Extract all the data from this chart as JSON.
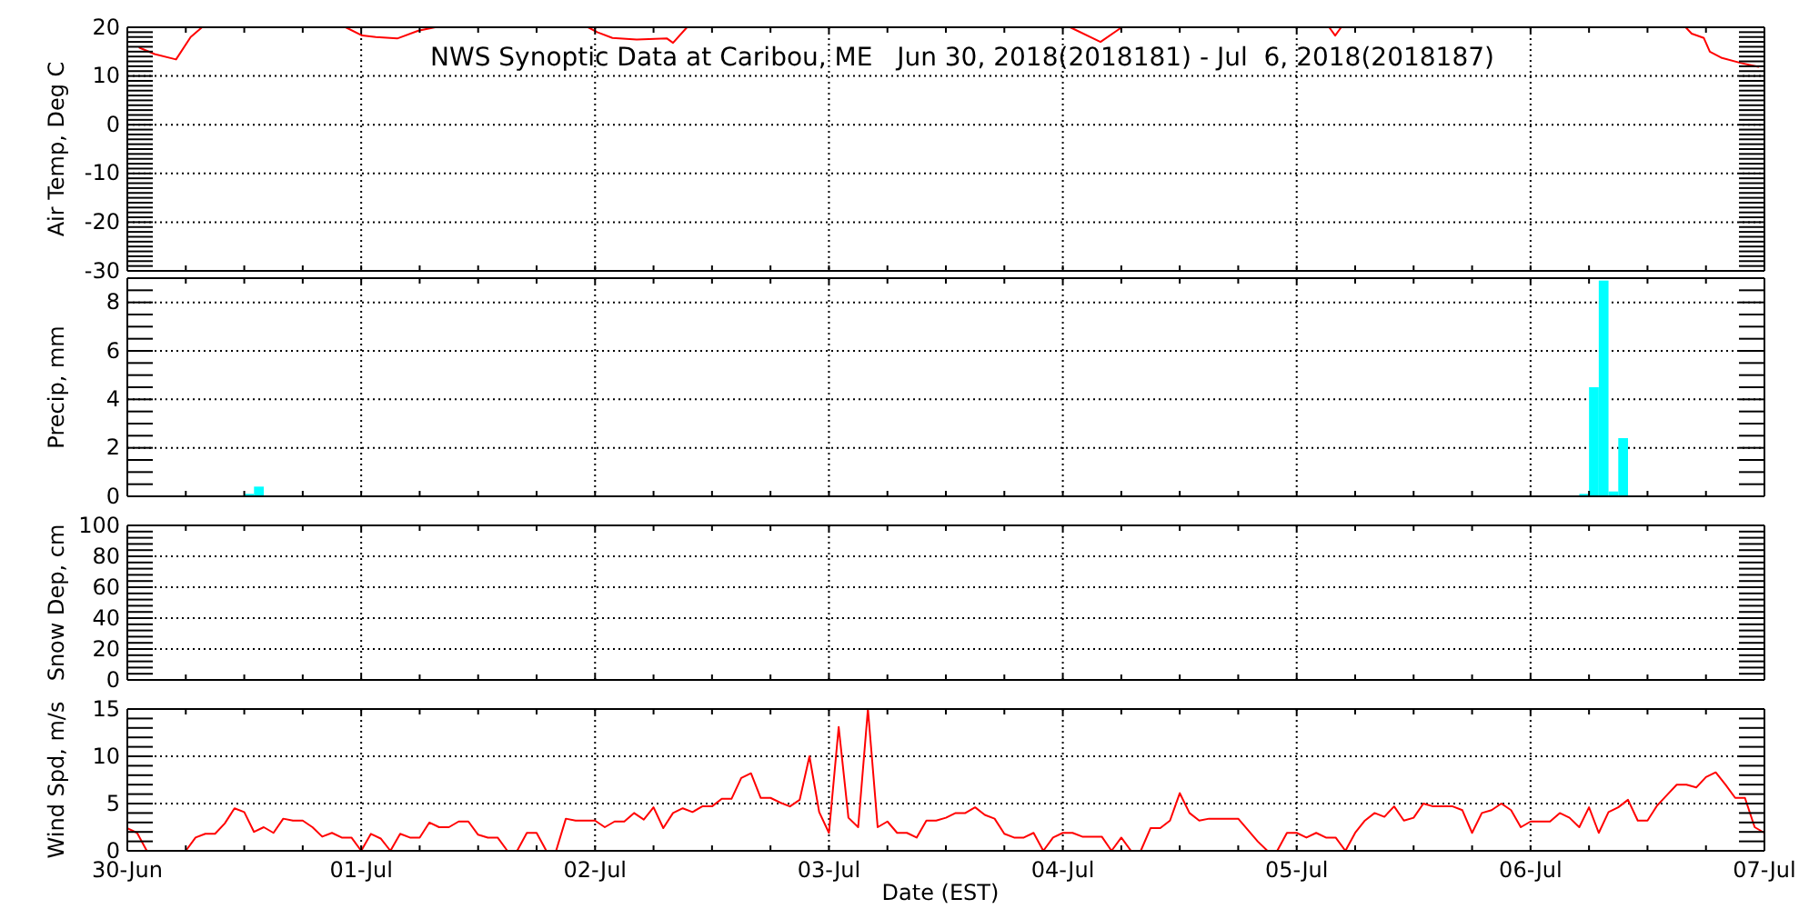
{
  "chart_data": [
    {
      "type": "line",
      "title": "NWS Synoptic Data at Caribou, ME   Jun 30, 2018(2018181) - Jul  6, 2018(2018187)",
      "ylabel": "Air Temp, Deg C",
      "color": "#ff0000",
      "grid": true,
      "tick_labels": "y",
      "x": [
        "2018-06-30T01:15",
        "2018-06-30T02:48",
        "2018-06-30T05:00",
        "2018-06-30T06:30",
        "2018-06-30T07:40",
        "2018-06-30T15:00",
        "2018-06-30T22:24",
        "2018-07-01T00:06",
        "2018-07-01T01:30",
        "2018-07-01T03:42",
        "2018-07-01T05:52",
        "2018-07-01T07:36",
        "2018-07-01T15:00",
        "2018-07-01T23:17",
        "2018-07-02T00:13",
        "2018-07-02T01:47",
        "2018-07-02T04:16",
        "2018-07-02T07:23",
        "2018-07-02T08:00",
        "2018-07-02T09:26",
        "2018-07-03T12:00",
        "2018-07-04T00:45",
        "2018-07-04T03:52",
        "2018-07-04T06:03",
        "2018-07-04T15:00",
        "2018-07-05T03:20",
        "2018-07-05T03:57",
        "2018-07-05T04:34",
        "2018-07-05T15:00",
        "2018-07-06T15:55",
        "2018-07-06T16:32",
        "2018-07-06T17:47",
        "2018-07-06T18:24",
        "2018-07-06T19:39",
        "2018-07-06T21:31",
        "2018-07-06T23:23"
      ],
      "values": [
        15.8,
        14.5,
        13.4,
        18.0,
        20,
        null,
        20,
        18.3,
        18.0,
        17.7,
        19.3,
        20,
        null,
        20,
        19.0,
        17.8,
        17.5,
        17.7,
        16.8,
        20,
        null,
        20,
        17.0,
        20,
        null,
        20,
        18.3,
        20,
        null,
        20,
        18.7,
        17.8,
        15.0,
        13.7,
        12.7,
        11.9
      ],
      "xlim": [
        "2018-06-30",
        "2018-07-07"
      ],
      "xticks": [
        {
          "value": "2018-06-30",
          "label": null
        },
        {
          "value": "2018-06-30T06:00",
          "label": null
        },
        {
          "value": "2018-06-30T12:00",
          "label": null
        },
        {
          "value": "2018-06-30T18:00",
          "label": null
        },
        {
          "value": "2018-07-01",
          "label": null
        },
        {
          "value": "2018-07-01T06:00",
          "label": null
        },
        {
          "value": "2018-07-01T12:00",
          "label": null
        },
        {
          "value": "2018-07-01T18:00",
          "label": null
        },
        {
          "value": "2018-07-02",
          "label": null
        },
        {
          "value": "2018-07-02T06:00",
          "label": null
        },
        {
          "value": "2018-07-02T12:00",
          "label": null
        },
        {
          "value": "2018-07-02T18:00",
          "label": null
        },
        {
          "value": "2018-07-03",
          "label": null
        },
        {
          "value": "2018-07-03T06:00",
          "label": null
        },
        {
          "value": "2018-07-03T12:00",
          "label": null
        },
        {
          "value": "2018-07-03T18:00",
          "label": null
        },
        {
          "value": "2018-07-04",
          "label": null
        },
        {
          "value": "2018-07-04T06:00",
          "label": null
        },
        {
          "value": "2018-07-04T12:00",
          "label": null
        },
        {
          "value": "2018-07-04T18:00",
          "label": null
        },
        {
          "value": "2018-07-05",
          "label": null
        },
        {
          "value": "2018-07-05T06:00",
          "label": null
        },
        {
          "value": "2018-07-05T12:00",
          "label": null
        },
        {
          "value": "2018-07-05T18:00",
          "label": null
        },
        {
          "value": "2018-07-06",
          "label": null
        },
        {
          "value": "2018-07-06T06:00",
          "label": null
        },
        {
          "value": "2018-07-06T12:00",
          "label": null
        },
        {
          "value": "2018-07-06T18:00",
          "label": null
        },
        {
          "value": "2018-07-07",
          "label": null
        }
      ],
      "ylim": [
        -30,
        20
      ],
      "yticks": [
        -30,
        {
          "value": -29,
          "label": null
        },
        {
          "value": -28,
          "label": null
        },
        {
          "value": -27,
          "label": null
        },
        {
          "value": -26,
          "label": null
        },
        {
          "value": -25,
          "label": null
        },
        {
          "value": -24,
          "label": null
        },
        {
          "value": -23,
          "label": null
        },
        {
          "value": -22,
          "label": null
        },
        {
          "value": -21,
          "label": null
        },
        -20,
        {
          "value": -19,
          "label": null
        },
        {
          "value": -18,
          "label": null
        },
        {
          "value": -17,
          "label": null
        },
        {
          "value": -16,
          "label": null
        },
        {
          "value": -15,
          "label": null
        },
        {
          "value": -14,
          "label": null
        },
        {
          "value": -13,
          "label": null
        },
        {
          "value": -12,
          "label": null
        },
        {
          "value": -11,
          "label": null
        },
        -10,
        {
          "value": -9,
          "label": null
        },
        {
          "value": -8,
          "label": null
        },
        {
          "value": -7,
          "label": null
        },
        {
          "value": -6,
          "label": null
        },
        {
          "value": -5,
          "label": null
        },
        {
          "value": -4,
          "label": null
        },
        {
          "value": -3,
          "label": null
        },
        {
          "value": -2,
          "label": null
        },
        {
          "value": -1,
          "label": null
        },
        0,
        {
          "value": 1,
          "label": null
        },
        {
          "value": 2,
          "label": null
        },
        {
          "value": 3,
          "label": null
        },
        {
          "value": 4,
          "label": null
        },
        {
          "value": 5,
          "label": null
        },
        {
          "value": 6,
          "label": null
        },
        {
          "value": 7,
          "label": null
        },
        {
          "value": 8,
          "label": null
        },
        {
          "value": 9,
          "label": null
        },
        10,
        {
          "value": 11,
          "label": null
        },
        {
          "value": 12,
          "label": null
        },
        {
          "value": 13,
          "label": null
        },
        {
          "value": 14,
          "label": null
        },
        {
          "value": 15,
          "label": null
        },
        {
          "value": 16,
          "label": null
        },
        {
          "value": 17,
          "label": null
        },
        {
          "value": 18,
          "label": null
        },
        {
          "value": 19,
          "label": null
        },
        20
      ]
    },
    {
      "type": "bar",
      "ylabel": "Precip, mm",
      "color": "#00ffff",
      "grid": true,
      "tick_labels": "y",
      "x": [
        "2018-06-30T12:30",
        "2018-06-30T13:30",
        "2018-07-06T05:30",
        "2018-07-06T06:30",
        "2018-07-06T07:30",
        "2018-07-06T08:30",
        "2018-07-06T09:30"
      ],
      "values": [
        0.1,
        0.4,
        0.1,
        4.5,
        8.9,
        0.2,
        2.4
      ],
      "xlim": [
        "2018-06-30",
        "2018-07-07"
      ],
      "xticks": [
        {
          "value": "2018-06-30",
          "label": null
        },
        {
          "value": "2018-06-30T06:00",
          "label": null
        },
        {
          "value": "2018-06-30T12:00",
          "label": null
        },
        {
          "value": "2018-06-30T18:00",
          "label": null
        },
        {
          "value": "2018-07-01",
          "label": null
        },
        {
          "value": "2018-07-01T06:00",
          "label": null
        },
        {
          "value": "2018-07-01T12:00",
          "label": null
        },
        {
          "value": "2018-07-01T18:00",
          "label": null
        },
        {
          "value": "2018-07-02",
          "label": null
        },
        {
          "value": "2018-07-02T06:00",
          "label": null
        },
        {
          "value": "2018-07-02T12:00",
          "label": null
        },
        {
          "value": "2018-07-02T18:00",
          "label": null
        },
        {
          "value": "2018-07-03",
          "label": null
        },
        {
          "value": "2018-07-03T06:00",
          "label": null
        },
        {
          "value": "2018-07-03T12:00",
          "label": null
        },
        {
          "value": "2018-07-03T18:00",
          "label": null
        },
        {
          "value": "2018-07-04",
          "label": null
        },
        {
          "value": "2018-07-04T06:00",
          "label": null
        },
        {
          "value": "2018-07-04T12:00",
          "label": null
        },
        {
          "value": "2018-07-04T18:00",
          "label": null
        },
        {
          "value": "2018-07-05",
          "label": null
        },
        {
          "value": "2018-07-05T06:00",
          "label": null
        },
        {
          "value": "2018-07-05T12:00",
          "label": null
        },
        {
          "value": "2018-07-05T18:00",
          "label": null
        },
        {
          "value": "2018-07-06",
          "label": null
        },
        {
          "value": "2018-07-06T06:00",
          "label": null
        },
        {
          "value": "2018-07-06T12:00",
          "label": null
        },
        {
          "value": "2018-07-06T18:00",
          "label": null
        },
        {
          "value": "2018-07-07",
          "label": null
        }
      ],
      "ylim": [
        0,
        9
      ],
      "yticks": [
        0,
        {
          "value": 0.5,
          "label": null
        },
        {
          "value": 1,
          "label": null
        },
        {
          "value": 1.5,
          "label": null
        },
        2,
        {
          "value": 2.5,
          "label": null
        },
        {
          "value": 3,
          "label": null
        },
        {
          "value": 3.5,
          "label": null
        },
        4,
        {
          "value": 4.5,
          "label": null
        },
        {
          "value": 5,
          "label": null
        },
        {
          "value": 5.5,
          "label": null
        },
        6,
        {
          "value": 6.5,
          "label": null
        },
        {
          "value": 7,
          "label": null
        },
        {
          "value": 7.5,
          "label": null
        },
        8,
        {
          "value": 8.5,
          "label": null
        }
      ]
    },
    {
      "type": "line",
      "ylabel": "Snow Dep, cm",
      "grid": true,
      "tick_labels": "y",
      "xlim": [
        "2018-06-30",
        "2018-07-07"
      ],
      "xticks": [
        {
          "value": "2018-06-30",
          "label": null
        },
        {
          "value": "2018-06-30T06:00",
          "label": null
        },
        {
          "value": "2018-06-30T12:00",
          "label": null
        },
        {
          "value": "2018-06-30T18:00",
          "label": null
        },
        {
          "value": "2018-07-01",
          "label": null
        },
        {
          "value": "2018-07-01T06:00",
          "label": null
        },
        {
          "value": "2018-07-01T12:00",
          "label": null
        },
        {
          "value": "2018-07-01T18:00",
          "label": null
        },
        {
          "value": "2018-07-02",
          "label": null
        },
        {
          "value": "2018-07-02T06:00",
          "label": null
        },
        {
          "value": "2018-07-02T12:00",
          "label": null
        },
        {
          "value": "2018-07-02T18:00",
          "label": null
        },
        {
          "value": "2018-07-03",
          "label": null
        },
        {
          "value": "2018-07-03T06:00",
          "label": null
        },
        {
          "value": "2018-07-03T12:00",
          "label": null
        },
        {
          "value": "2018-07-03T18:00",
          "label": null
        },
        {
          "value": "2018-07-04",
          "label": null
        },
        {
          "value": "2018-07-04T06:00",
          "label": null
        },
        {
          "value": "2018-07-04T12:00",
          "label": null
        },
        {
          "value": "2018-07-04T18:00",
          "label": null
        },
        {
          "value": "2018-07-05",
          "label": null
        },
        {
          "value": "2018-07-05T06:00",
          "label": null
        },
        {
          "value": "2018-07-05T12:00",
          "label": null
        },
        {
          "value": "2018-07-05T18:00",
          "label": null
        },
        {
          "value": "2018-07-06",
          "label": null
        },
        {
          "value": "2018-07-06T06:00",
          "label": null
        },
        {
          "value": "2018-07-06T12:00",
          "label": null
        },
        {
          "value": "2018-07-06T18:00",
          "label": null
        },
        {
          "value": "2018-07-07",
          "label": null
        }
      ],
      "ylim": [
        0,
        100
      ],
      "yticks": [
        0,
        {
          "value": 4,
          "label": null
        },
        {
          "value": 8,
          "label": null
        },
        {
          "value": 12,
          "label": null
        },
        {
          "value": 16,
          "label": null
        },
        20,
        {
          "value": 24,
          "label": null
        },
        {
          "value": 28,
          "label": null
        },
        {
          "value": 32,
          "label": null
        },
        {
          "value": 36,
          "label": null
        },
        40,
        {
          "value": 44,
          "label": null
        },
        {
          "value": 48,
          "label": null
        },
        {
          "value": 52,
          "label": null
        },
        {
          "value": 56,
          "label": null
        },
        60,
        {
          "value": 64,
          "label": null
        },
        {
          "value": 68,
          "label": null
        },
        {
          "value": 72,
          "label": null
        },
        {
          "value": 76,
          "label": null
        },
        80,
        {
          "value": 84,
          "label": null
        },
        {
          "value": 88,
          "label": null
        },
        {
          "value": 92,
          "label": null
        },
        {
          "value": 96,
          "label": null
        },
        100
      ]
    },
    {
      "type": "line",
      "ylabel": "Wind Spd, m/s",
      "xlabel": "Date (EST)",
      "color": "#ff0000",
      "grid": true,
      "x": [
        "2018-06-30T00:00",
        "2018-06-30T01:00",
        "2018-06-30T02:00",
        "2018-06-30T06:00",
        "2018-06-30T07:00",
        "2018-06-30T08:00",
        "2018-06-30T09:00",
        "2018-06-30T10:00",
        "2018-06-30T11:00",
        "2018-06-30T12:00",
        "2018-06-30T13:00",
        "2018-06-30T14:00",
        "2018-06-30T15:00",
        "2018-06-30T16:00",
        "2018-06-30T17:00",
        "2018-06-30T18:00",
        "2018-06-30T19:00",
        "2018-06-30T20:00",
        "2018-06-30T21:00",
        "2018-06-30T22:00",
        "2018-06-30T23:00",
        "2018-07-01T00:00",
        "2018-07-01T01:00",
        "2018-07-01T02:00",
        "2018-07-01T03:00",
        "2018-07-01T04:00",
        "2018-07-01T05:00",
        "2018-07-01T06:00",
        "2018-07-01T07:00",
        "2018-07-01T08:00",
        "2018-07-01T09:00",
        "2018-07-01T10:00",
        "2018-07-01T11:00",
        "2018-07-01T12:00",
        "2018-07-01T13:00",
        "2018-07-01T14:00",
        "2018-07-01T15:00",
        "2018-07-01T16:00",
        "2018-07-01T17:00",
        "2018-07-01T18:00",
        "2018-07-01T19:00",
        "2018-07-01T20:00",
        "2018-07-01T21:00",
        "2018-07-01T22:00",
        "2018-07-01T23:00",
        "2018-07-02T00:00",
        "2018-07-02T01:00",
        "2018-07-02T02:00",
        "2018-07-02T03:00",
        "2018-07-02T04:00",
        "2018-07-02T05:00",
        "2018-07-02T06:00",
        "2018-07-02T07:00",
        "2018-07-02T08:00",
        "2018-07-02T09:00",
        "2018-07-02T10:00",
        "2018-07-02T11:00",
        "2018-07-02T12:00",
        "2018-07-02T13:00",
        "2018-07-02T14:00",
        "2018-07-02T15:00",
        "2018-07-02T16:00",
        "2018-07-02T17:00",
        "2018-07-02T18:00",
        "2018-07-02T19:00",
        "2018-07-02T20:00",
        "2018-07-02T21:00",
        "2018-07-02T22:00",
        "2018-07-02T23:00",
        "2018-07-03T00:00",
        "2018-07-03T01:00",
        "2018-07-03T02:00",
        "2018-07-03T03:00",
        "2018-07-03T04:00",
        "2018-07-03T05:00",
        "2018-07-03T06:00",
        "2018-07-03T07:00",
        "2018-07-03T08:00",
        "2018-07-03T09:00",
        "2018-07-03T10:00",
        "2018-07-03T11:00",
        "2018-07-03T12:00",
        "2018-07-03T13:00",
        "2018-07-03T14:00",
        "2018-07-03T15:00",
        "2018-07-03T16:00",
        "2018-07-03T17:00",
        "2018-07-03T18:00",
        "2018-07-03T19:00",
        "2018-07-03T20:00",
        "2018-07-03T21:00",
        "2018-07-03T22:00",
        "2018-07-03T23:00",
        "2018-07-04T00:00",
        "2018-07-04T01:00",
        "2018-07-04T02:00",
        "2018-07-04T04:00",
        "2018-07-04T05:00",
        "2018-07-04T06:00",
        "2018-07-04T07:00",
        "2018-07-04T08:00",
        "2018-07-04T09:00",
        "2018-07-04T10:00",
        "2018-07-04T11:00",
        "2018-07-04T12:00",
        "2018-07-04T13:00",
        "2018-07-04T14:00",
        "2018-07-04T15:00",
        "2018-07-04T18:00",
        "2018-07-04T19:00",
        "2018-07-04T20:00",
        "2018-07-04T21:00",
        "2018-07-04T22:00",
        "2018-07-04T23:00",
        "2018-07-05T00:00",
        "2018-07-05T01:00",
        "2018-07-05T02:00",
        "2018-07-05T03:00",
        "2018-07-05T04:00",
        "2018-07-05T05:00",
        "2018-07-05T06:00",
        "2018-07-05T07:00",
        "2018-07-05T08:00",
        "2018-07-05T09:00",
        "2018-07-05T10:00",
        "2018-07-05T11:00",
        "2018-07-05T12:00",
        "2018-07-05T13:00",
        "2018-07-05T14:00",
        "2018-07-05T16:00",
        "2018-07-05T17:00",
        "2018-07-05T18:00",
        "2018-07-05T19:00",
        "2018-07-05T20:00",
        "2018-07-05T21:00",
        "2018-07-05T22:00",
        "2018-07-05T23:00",
        "2018-07-06T00:00",
        "2018-07-06T02:00",
        "2018-07-06T03:00",
        "2018-07-06T04:00",
        "2018-07-06T05:00",
        "2018-07-06T06:00",
        "2018-07-06T07:00",
        "2018-07-06T08:00",
        "2018-07-06T09:00",
        "2018-07-06T10:00",
        "2018-07-06T11:00",
        "2018-07-06T12:00",
        "2018-07-06T13:00",
        "2018-07-06T14:00",
        "2018-07-06T15:00",
        "2018-07-06T16:00",
        "2018-07-06T17:00",
        "2018-07-06T18:00",
        "2018-07-06T19:00",
        "2018-07-06T20:00",
        "2018-07-06T21:00",
        "2018-07-06T22:00",
        "2018-07-06T23:00",
        "2018-07-07T00:00"
      ],
      "values": [
        2.4,
        1.9,
        0,
        0,
        1.4,
        1.8,
        1.8,
        2.9,
        4.5,
        4.1,
        2.0,
        2.5,
        1.9,
        3.4,
        3.2,
        3.2,
        2.5,
        1.5,
        1.9,
        1.4,
        1.4,
        0,
        1.8,
        1.3,
        0,
        1.8,
        1.4,
        1.4,
        3.0,
        2.5,
        2.5,
        3.1,
        3.1,
        1.7,
        1.4,
        1.4,
        0,
        0,
        1.9,
        1.9,
        0,
        0,
        3.4,
        3.2,
        3.2,
        3.2,
        2.5,
        3.1,
        3.1,
        4.0,
        3.3,
        4.6,
        2.4,
        4.0,
        4.5,
        4.1,
        4.7,
        4.7,
        5.5,
        5.5,
        7.7,
        8.2,
        5.6,
        5.6,
        5.1,
        4.7,
        5.4,
        10,
        4.1,
        1.9,
        13.1,
        3.5,
        2.5,
        15,
        2.5,
        3.1,
        1.9,
        1.9,
        1.4,
        3.2,
        3.2,
        3.5,
        4.0,
        4.0,
        4.6,
        3.8,
        3.4,
        1.8,
        1.4,
        1.4,
        1.9,
        0,
        1.4,
        1.9,
        1.9,
        1.5,
        1.5,
        0,
        1.4,
        0,
        0,
        2.4,
        2.4,
        3.2,
        6.1,
        4.0,
        3.2,
        3.4,
        3.4,
        2.2,
        1.0,
        0,
        0,
        1.9,
        1.9,
        1.4,
        1.9,
        1.4,
        1.4,
        0,
        1.9,
        3.2,
        4.0,
        3.6,
        4.7,
        3.2,
        3.5,
        5.0,
        4.7,
        4.7,
        4.3,
        1.9,
        4.0,
        4.3,
        5.0,
        4.3,
        2.5,
        3.1,
        3.1,
        4.0,
        3.5,
        2.5,
        4.6,
        1.9,
        4.1,
        4.6,
        5.4,
        3.2,
        3.2,
        4.8,
        5.9,
        7.0,
        7.0,
        6.7,
        7.8,
        8.3,
        7.0,
        5.6,
        5.6,
        2.5,
        1.9
      ],
      "xlim": [
        "2018-06-30",
        "2018-07-07"
      ],
      "xticks": [
        {
          "value": "2018-06-30",
          "label": "30-Jun"
        },
        {
          "value": "2018-06-30T06:00",
          "label": null
        },
        {
          "value": "2018-06-30T12:00",
          "label": null
        },
        {
          "value": "2018-06-30T18:00",
          "label": null
        },
        {
          "value": "2018-07-01",
          "label": "01-Jul"
        },
        {
          "value": "2018-07-01T06:00",
          "label": null
        },
        {
          "value": "2018-07-01T12:00",
          "label": null
        },
        {
          "value": "2018-07-01T18:00",
          "label": null
        },
        {
          "value": "2018-07-02",
          "label": "02-Jul"
        },
        {
          "value": "2018-07-02T06:00",
          "label": null
        },
        {
          "value": "2018-07-02T12:00",
          "label": null
        },
        {
          "value": "2018-07-02T18:00",
          "label": null
        },
        {
          "value": "2018-07-03",
          "label": "03-Jul"
        },
        {
          "value": "2018-07-03T06:00",
          "label": null
        },
        {
          "value": "2018-07-03T12:00",
          "label": null
        },
        {
          "value": "2018-07-03T18:00",
          "label": null
        },
        {
          "value": "2018-07-04",
          "label": "04-Jul"
        },
        {
          "value": "2018-07-04T06:00",
          "label": null
        },
        {
          "value": "2018-07-04T12:00",
          "label": null
        },
        {
          "value": "2018-07-04T18:00",
          "label": null
        },
        {
          "value": "2018-07-05",
          "label": "05-Jul"
        },
        {
          "value": "2018-07-05T06:00",
          "label": null
        },
        {
          "value": "2018-07-05T12:00",
          "label": null
        },
        {
          "value": "2018-07-05T18:00",
          "label": null
        },
        {
          "value": "2018-07-06",
          "label": "06-Jul"
        },
        {
          "value": "2018-07-06T06:00",
          "label": null
        },
        {
          "value": "2018-07-06T12:00",
          "label": null
        },
        {
          "value": "2018-07-06T18:00",
          "label": null
        },
        {
          "value": "2018-07-07",
          "label": "07-Jul"
        }
      ],
      "ylim": [
        0,
        15
      ],
      "yticks": [
        0,
        {
          "value": 1,
          "label": null
        },
        {
          "value": 2,
          "label": null
        },
        {
          "value": 3,
          "label": null
        },
        {
          "value": 4,
          "label": null
        },
        5,
        {
          "value": 6,
          "label": null
        },
        {
          "value": 7,
          "label": null
        },
        {
          "value": 8,
          "label": null
        },
        {
          "value": 9,
          "label": null
        },
        10,
        {
          "value": 11,
          "label": null
        },
        {
          "value": 12,
          "label": null
        },
        {
          "value": 13,
          "label": null
        },
        {
          "value": 14,
          "label": null
        },
        15
      ]
    }
  ]
}
